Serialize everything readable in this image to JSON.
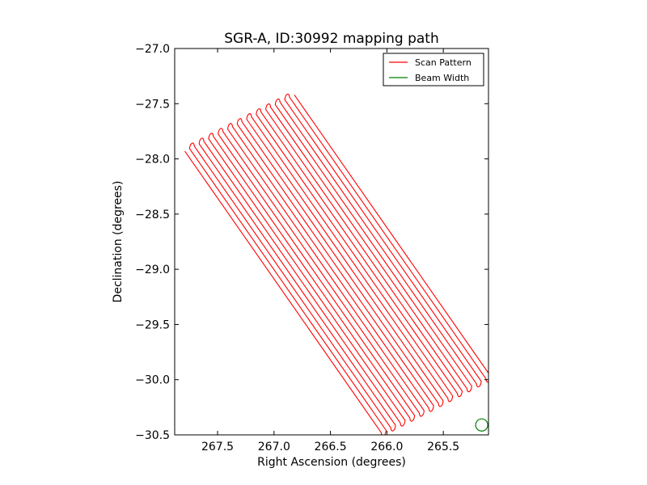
{
  "chart_data": {
    "type": "line",
    "title": "SGR-A, ID:30992 mapping path",
    "xlabel": "Right Ascension (degrees)",
    "ylabel": "Declination (degrees)",
    "xlim": [
      267.88,
      265.1
    ],
    "ylim": [
      -30.5,
      -27.0
    ],
    "x_inverted": true,
    "xticks": [
      267.5,
      267.0,
      266.5,
      266.0,
      265.5
    ],
    "xtick_labels": [
      "267.5",
      "267.0",
      "266.5",
      "266.0",
      "265.5"
    ],
    "yticks": [
      -27.0,
      -27.5,
      -28.0,
      -28.5,
      -29.0,
      -29.5,
      -30.0,
      -30.5
    ],
    "ytick_labels": [
      "−27.0",
      "−27.5",
      "−28.0",
      "−28.5",
      "−29.0",
      "−29.5",
      "−30.0",
      "−30.5"
    ],
    "grid": false,
    "legend_position": "upper-right",
    "series": [
      {
        "name": "Scan Pattern",
        "color": "#ff0000",
        "scan": {
          "legs": 24,
          "start_top": [
            267.79,
            -27.93
          ],
          "start_bottom": [
            266.05,
            -30.48
          ],
          "end_top": [
            266.82,
            -27.42
          ],
          "end_bottom": [
            265.08,
            -29.97
          ]
        }
      },
      {
        "name": "Beam Width",
        "color": "#008000",
        "circle": {
          "center": [
            265.16,
            -30.41
          ],
          "radius_deg": 0.055
        }
      }
    ]
  }
}
